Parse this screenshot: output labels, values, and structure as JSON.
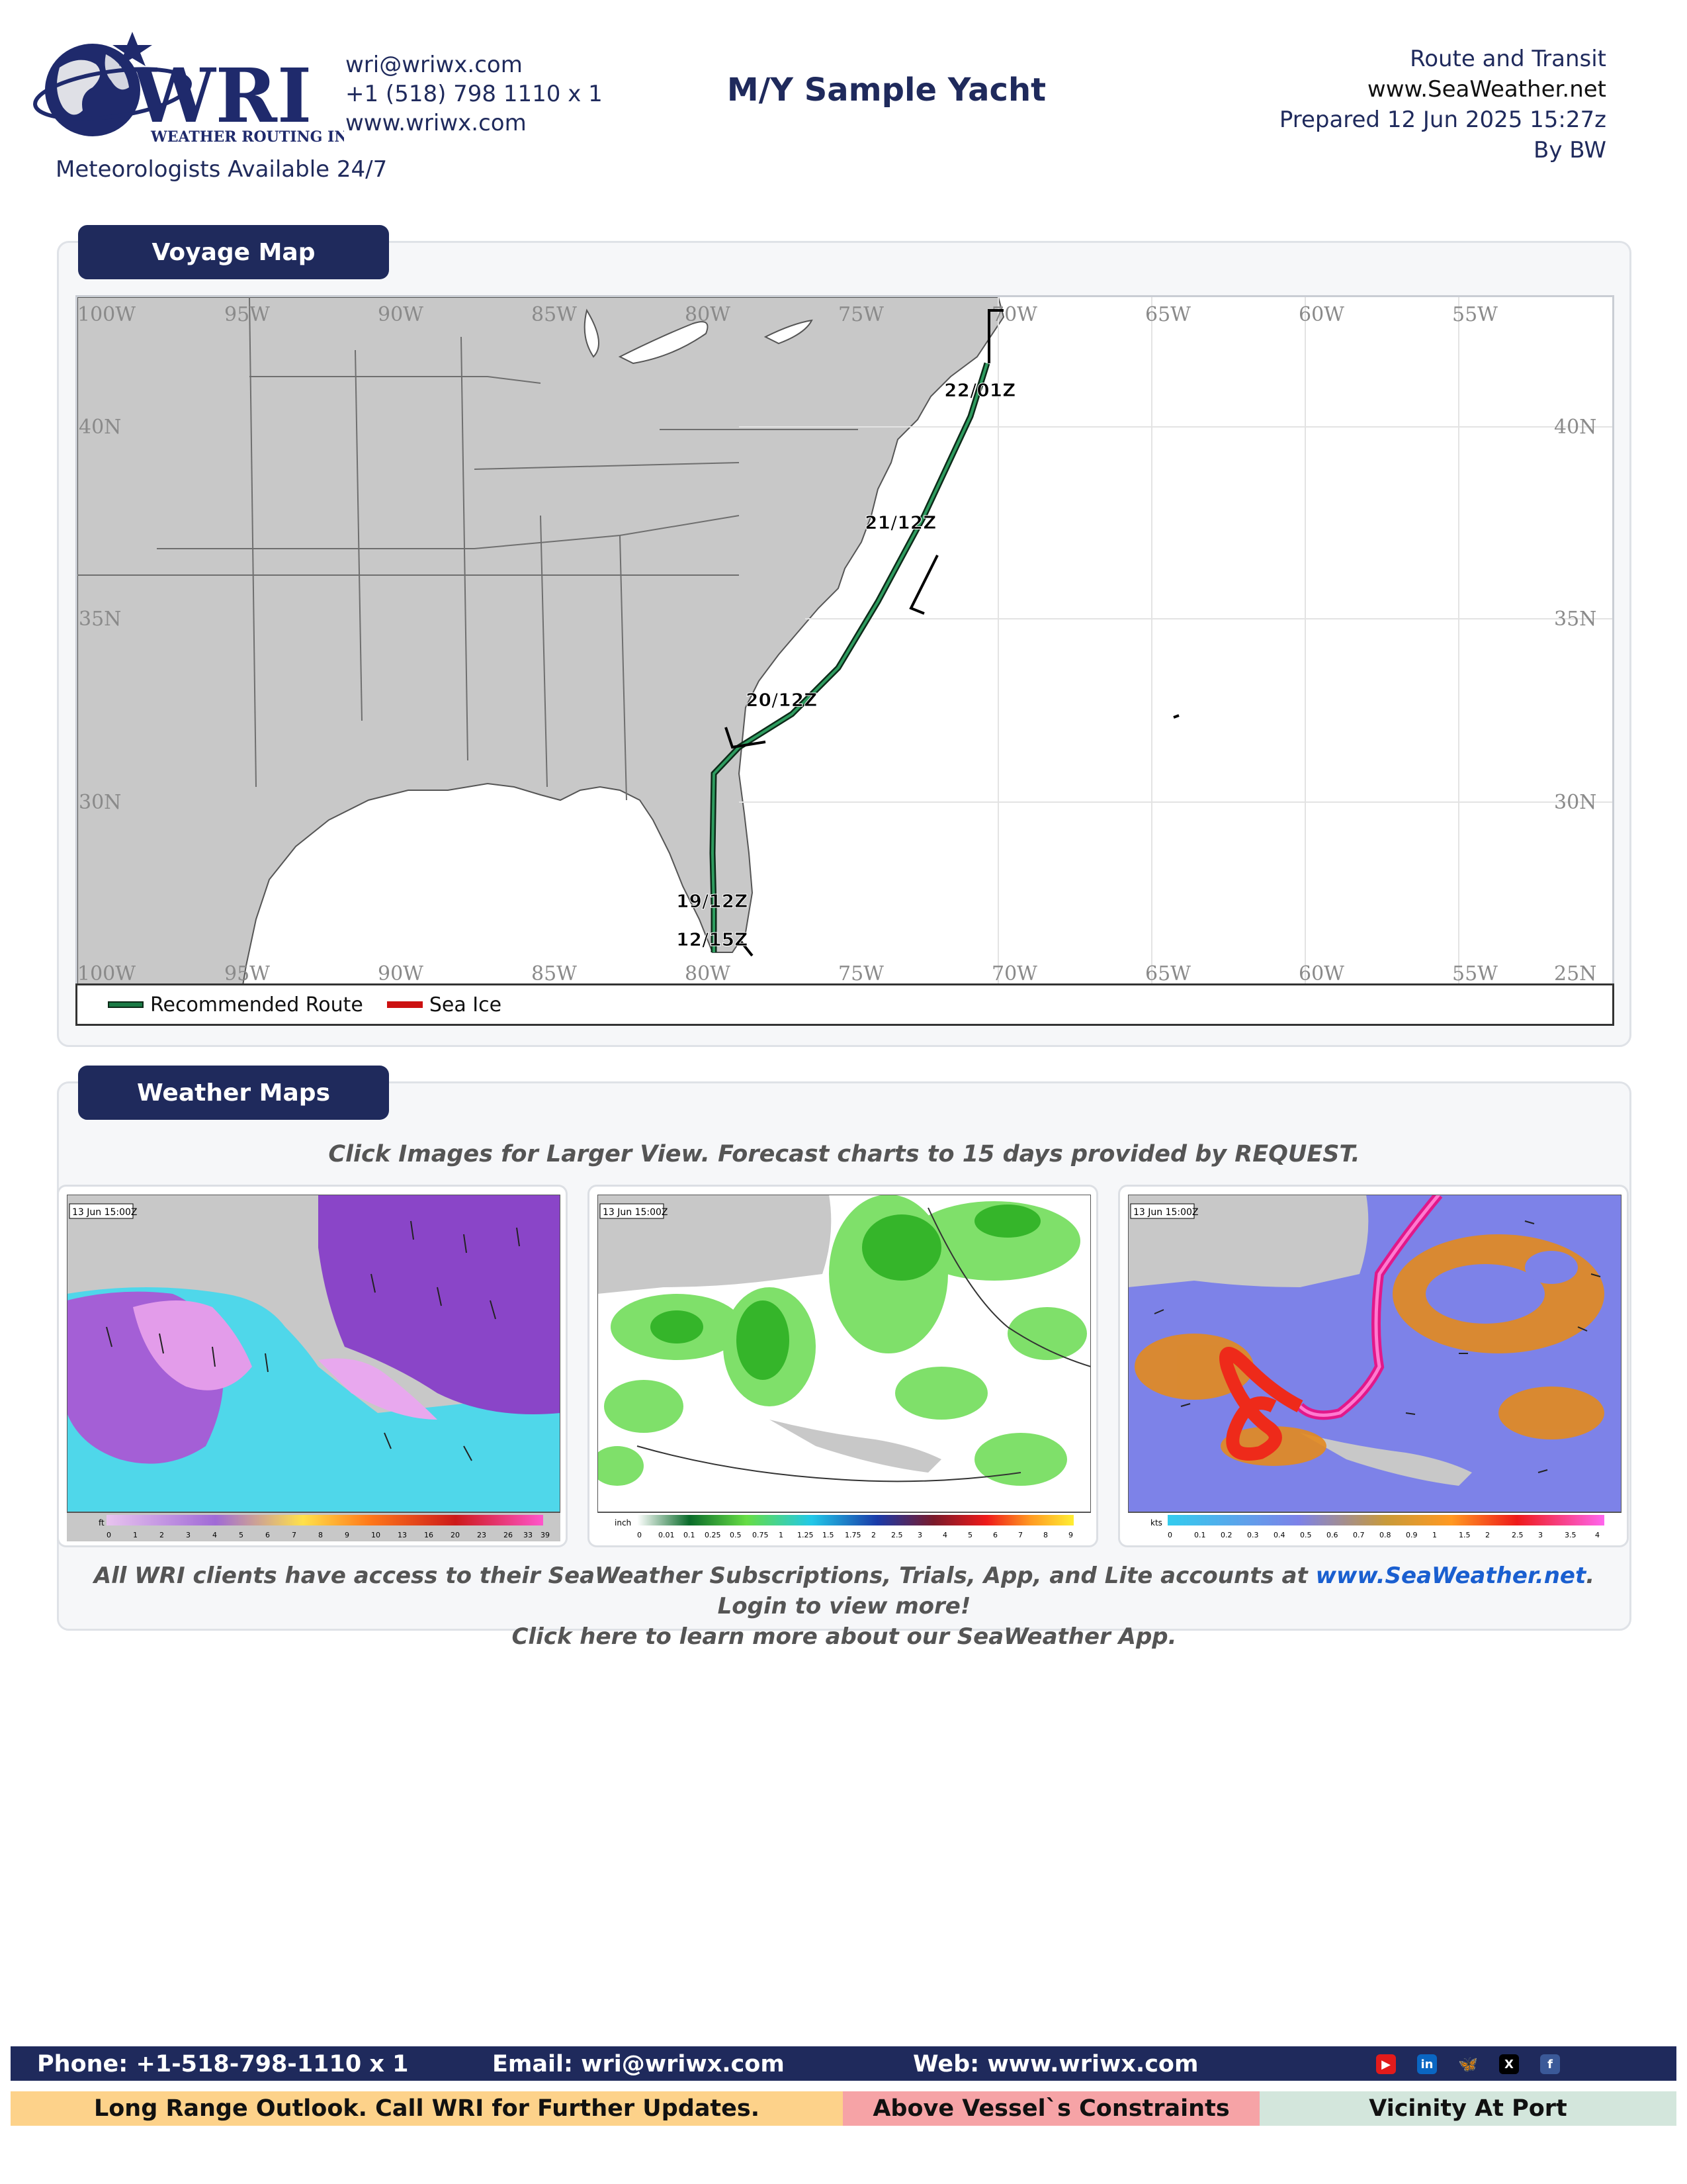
{
  "header": {
    "logo_text": "WRI",
    "logo_sub": "WEATHER ROUTING INC.",
    "email": "wri@wriwx.com",
    "phone": "+1 (518) 798 1110 x 1",
    "web": "www.wriwx.com",
    "tagline": "Meteorologists Available 24/7",
    "vessel": "M/Y Sample Yacht",
    "report_type": "Route and Transit",
    "site": "www.SeaWeather.net",
    "prepared": "Prepared 12 Jun 2025 15:27z",
    "by": "By BW"
  },
  "voyage": {
    "title": "Voyage Map",
    "lon_labels": [
      "100W",
      "95W",
      "90W",
      "85W",
      "80W",
      "75W",
      "70W",
      "65W",
      "60W",
      "55W"
    ],
    "lat_labels": [
      "40N",
      "35N",
      "30N",
      "25N"
    ],
    "waypoints": [
      "22/01Z",
      "21/12Z",
      "20/12Z",
      "19/12Z",
      "12/15Z"
    ],
    "legend": {
      "route": "Recommended Route",
      "ice": "Sea Ice"
    },
    "colors": {
      "route": "#1b7a45",
      "ice": "#cc1111",
      "land": "#c8c8c8"
    }
  },
  "weather": {
    "title": "Weather Maps",
    "caption": "Click Images for Larger View. Forecast charts to 15 days provided by REQUEST.",
    "maps": [
      {
        "timestamp": "13 Jun 15:00Z",
        "unit": "ft",
        "scale": [
          "0",
          "1",
          "2",
          "3",
          "4",
          "5",
          "6",
          "7",
          "8",
          "9",
          "10",
          "13",
          "16",
          "20",
          "23",
          "26",
          "33",
          "39"
        ]
      },
      {
        "timestamp": "13 Jun 15:00Z",
        "unit": "inch",
        "scale": [
          "0",
          "0.01",
          "0.1",
          "0.25",
          "0.5",
          "0.75",
          "1",
          "1.25",
          "1.5",
          "1.75",
          "2",
          "2.5",
          "3",
          "4",
          "5",
          "6",
          "7",
          "8",
          "9"
        ]
      },
      {
        "timestamp": "13 Jun 15:00Z",
        "unit": "kts",
        "scale": [
          "0",
          "0.1",
          "0.2",
          "0.3",
          "0.4",
          "0.5",
          "0.6",
          "0.7",
          "0.8",
          "0.9",
          "1",
          "1.5",
          "2",
          "2.5",
          "3",
          "3.5",
          "4"
        ]
      }
    ],
    "note_prefix": "All WRI clients have access to their SeaWeather Subscriptions, Trials, App, and Lite accounts at ",
    "note_link": "www.SeaWeather.net",
    "note_suffix": ". Login to view more!",
    "note_line2": "Click here to learn more about our SeaWeather App."
  },
  "footer": {
    "phone": "Phone: +1-518-798-1110 x 1",
    "email": "Email: wri@wriwx.com",
    "web": "Web: www.wriwx.com",
    "social_icons": [
      "youtube-icon",
      "linkedin-icon",
      "bluesky-icon",
      "x-icon",
      "facebook-icon"
    ],
    "status": [
      {
        "label": "Long Range Outlook. Call WRI for Further Updates.",
        "color": "#fdd28a"
      },
      {
        "label": "Above Vessel`s Constraints",
        "color": "#f6a3a6"
      },
      {
        "label": "Vicinity At Port",
        "color": "#d3e6dc"
      }
    ]
  }
}
